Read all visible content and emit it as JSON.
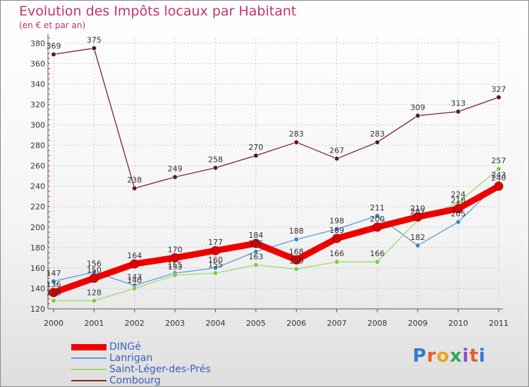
{
  "header": {
    "title": "Evolution des Impôts locaux par Habitant",
    "subtitle": "(en € et par an)"
  },
  "logo": {
    "text": "Proxiti",
    "colors": [
      "#2f7ad6",
      "#e0602a",
      "#f0a020",
      "#2fa84f",
      "#8a4fc0",
      "#e0602a",
      "#2f7ad6"
    ]
  },
  "chart_data": {
    "type": "line",
    "title": "Evolution des Impôts locaux par Habitant",
    "subtitle": "(en € et par an)",
    "xlabel": "",
    "ylabel": "",
    "ylim": [
      120,
      385
    ],
    "yticks": [
      120,
      140,
      160,
      180,
      200,
      220,
      240,
      260,
      280,
      300,
      320,
      340,
      360,
      380
    ],
    "categories": [
      "2000",
      "2001",
      "2002",
      "2003",
      "2004",
      "2005",
      "2006",
      "2007",
      "2008",
      "2009",
      "2010",
      "2011"
    ],
    "grid": true,
    "legend_position": "bottom-left",
    "series": [
      {
        "name": "Combourg",
        "color": "#7a2626",
        "marker": "#5e1a1a",
        "width": "normal",
        "labels_shown": true,
        "values": [
          369,
          375,
          238,
          249,
          258,
          270,
          283,
          267,
          283,
          309,
          313,
          327
        ]
      },
      {
        "name": "Lanrigan",
        "color": "#5b9bd5",
        "marker": "#3f84c8",
        "width": "normal",
        "labels_shown": true,
        "values": [
          147,
          156,
          143,
          155,
          160,
          176,
          188,
          198,
          211,
          182,
          205,
          243
        ]
      },
      {
        "name": "Saint-Léger-des-Prés",
        "color": "#9bd86c",
        "marker": "#7ec94a",
        "width": "normal",
        "labels_shown": true,
        "values": [
          128,
          128,
          140,
          153,
          155,
          163,
          159,
          166,
          166,
          207,
          224,
          257
        ]
      },
      {
        "name": "DINGé",
        "color": "#ee0000",
        "marker": "#e00000",
        "width": "thick",
        "labels_shown": true,
        "values": [
          136,
          150,
          164,
          170,
          177,
          184,
          168,
          189,
          200,
          210,
          218,
          240
        ]
      }
    ]
  }
}
